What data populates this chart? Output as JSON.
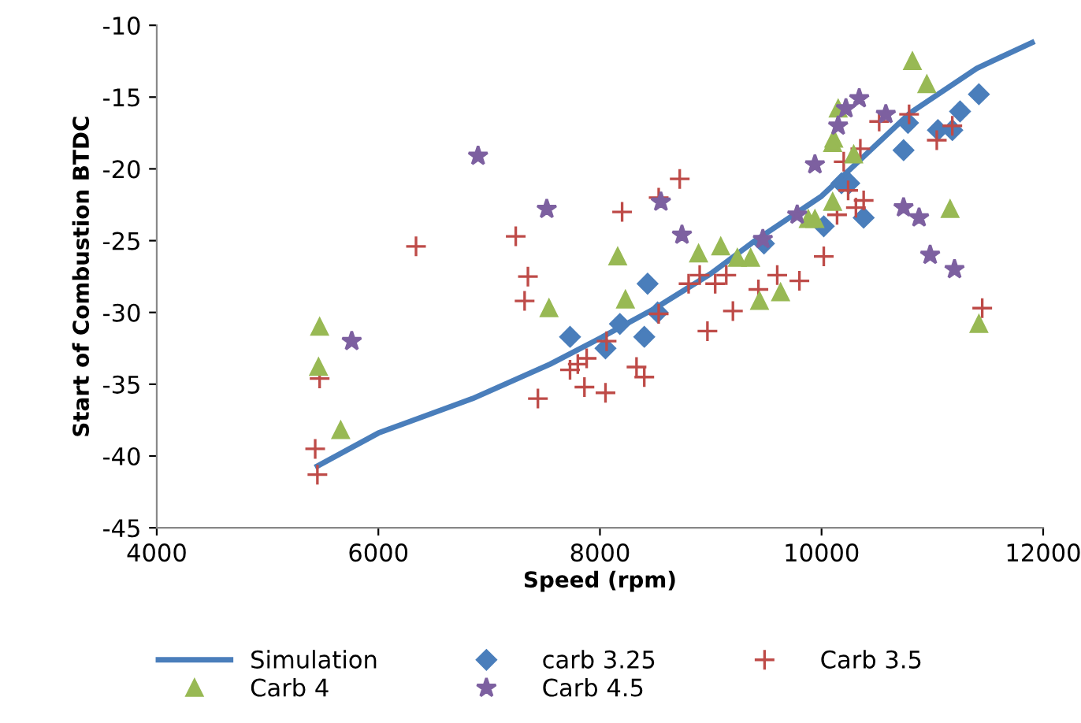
{
  "chart_data": {
    "type": "scatter",
    "xlabel": "Speed (rpm)",
    "ylabel": "Start of Combustion BTDC",
    "xlim": [
      4000,
      12000
    ],
    "xticks": [
      4000,
      6000,
      8000,
      10000,
      12000
    ],
    "ylim": [
      -45,
      -10
    ],
    "yticks": [
      -45,
      -40,
      -35,
      -30,
      -25,
      -20,
      -15,
      -10
    ],
    "grid": false,
    "legend": "bottom",
    "series": [
      {
        "name": "Simulation",
        "type": "line",
        "color": "#4a7ebb",
        "marker": "none",
        "line_style": "solid",
        "x": [
          5450,
          6000,
          6850,
          7550,
          8000,
          8500,
          9000,
          9400,
          10000,
          10800,
          11400,
          11900
        ],
        "values": [
          -40.7,
          -38.4,
          -36,
          -33.6,
          -31.8,
          -29.7,
          -27.3,
          -25,
          -21.9,
          -16.1,
          -13,
          -11.2
        ]
      },
      {
        "name": "carb 3.25",
        "color": "#4a7ebb",
        "marker": "diamond",
        "x": [
          7730,
          8050,
          8180,
          8400,
          8430,
          8520,
          9480,
          10020,
          10180,
          10250,
          10380,
          10740,
          10780,
          11050,
          11180,
          11250,
          11420
        ],
        "values": [
          -31.7,
          -32.5,
          -30.8,
          -31.7,
          -28,
          -30,
          -25.2,
          -24,
          -21,
          -21,
          -23.4,
          -18.7,
          -16.8,
          -17.3,
          -17.3,
          -16,
          -14.8
        ]
      },
      {
        "name": "Carb 3.5",
        "color": "#be4b48",
        "marker": "cross",
        "x": [
          5430,
          5450,
          5470,
          6340,
          7240,
          7350,
          7320,
          7440,
          7730,
          7880,
          7860,
          8050,
          8060,
          8200,
          7800,
          8330,
          8400,
          8530,
          8530,
          8720,
          8800,
          8900,
          9040,
          9140,
          8970,
          9200,
          9430,
          9600,
          9800,
          10020,
          10140,
          10240,
          10310,
          10380,
          10200,
          10350,
          10520,
          10790,
          11040,
          11180,
          11450
        ],
        "values": [
          -39.5,
          -41.3,
          -34.6,
          -25.4,
          -24.7,
          -27.5,
          -29.2,
          -36,
          -34,
          -33.2,
          -35.2,
          -35.6,
          -32,
          -23,
          -33.6,
          -33.8,
          -34.5,
          -30.1,
          -22,
          -20.7,
          -28,
          -27.4,
          -28,
          -27.4,
          -31.3,
          -29.9,
          -28.4,
          -27.4,
          -27.8,
          -26.1,
          -23.2,
          -21.5,
          -22.7,
          -22.2,
          -19.5,
          -18.6,
          -16.7,
          -16.2,
          -18,
          -17,
          -29.7
        ]
      },
      {
        "name": "Carb 4",
        "color": "#98b954",
        "marker": "triangle",
        "x": [
          5470,
          5460,
          5660,
          7540,
          8160,
          8230,
          8890,
          9090,
          9240,
          9360,
          9440,
          9630,
          9880,
          9940,
          10100,
          10110,
          10150,
          10290,
          10100,
          10820,
          10950,
          11160,
          11420
        ],
        "values": [
          -31,
          -33.8,
          -38.2,
          -29.7,
          -26.1,
          -29.1,
          -25.9,
          -25.4,
          -26.2,
          -26.2,
          -29.2,
          -28.6,
          -23.5,
          -23.5,
          -22.3,
          -17.9,
          -15.8,
          -19,
          -18.2,
          -12.5,
          -14.1,
          -22.8,
          -30.8
        ]
      },
      {
        "name": "Carb 4.5",
        "color": "#7d60a0",
        "marker": "star",
        "x": [
          5760,
          6900,
          7520,
          8550,
          8740,
          9470,
          9780,
          9940,
          10150,
          10220,
          10340,
          10580,
          10740,
          10880,
          10980,
          11200
        ],
        "values": [
          -32,
          -19.1,
          -22.8,
          -22.3,
          -24.6,
          -24.9,
          -23.2,
          -19.7,
          -17,
          -15.8,
          -15.1,
          -16.2,
          -22.7,
          -23.4,
          -26,
          -27
        ]
      }
    ]
  }
}
